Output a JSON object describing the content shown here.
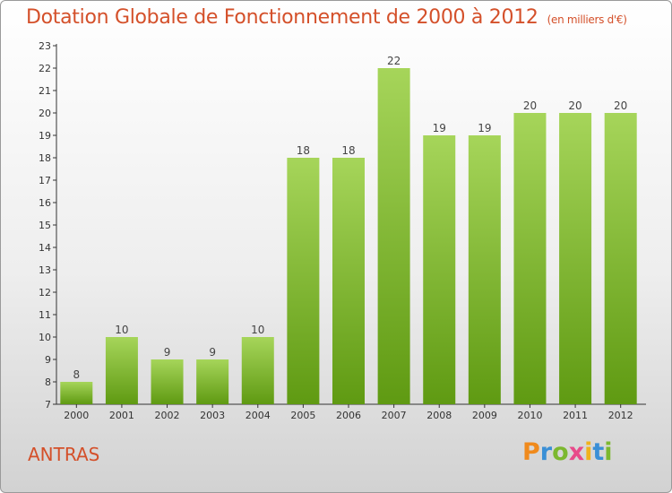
{
  "header": {
    "title": "Dotation Globale de Fonctionnement de 2000 à 2012",
    "unit": "(en milliers d'€)"
  },
  "footer": {
    "commune": "ANTRAS",
    "brand": [
      "P",
      "r",
      "o",
      "x",
      "i",
      "t",
      "i"
    ]
  },
  "colors": {
    "bar_light": "#a6d55a",
    "bar_dark": "#5f9a12",
    "title": "#d4502a"
  },
  "chart_data": {
    "type": "bar",
    "title": "Dotation Globale de Fonctionnement de 2000 à 2012",
    "subtitle": "(en milliers d'€)",
    "categories": [
      "2000",
      "2001",
      "2002",
      "2003",
      "2004",
      "2005",
      "2006",
      "2007",
      "2008",
      "2009",
      "2010",
      "2011",
      "2012"
    ],
    "values": [
      8,
      10,
      9,
      9,
      10,
      18,
      18,
      22,
      19,
      19,
      20,
      20,
      20
    ],
    "ylim": [
      7,
      23
    ],
    "yticks": [
      7,
      8,
      9,
      10,
      11,
      12,
      13,
      14,
      15,
      16,
      17,
      18,
      19,
      20,
      21,
      22,
      23
    ],
    "grid": false,
    "legend": "none",
    "data_labels": true
  }
}
